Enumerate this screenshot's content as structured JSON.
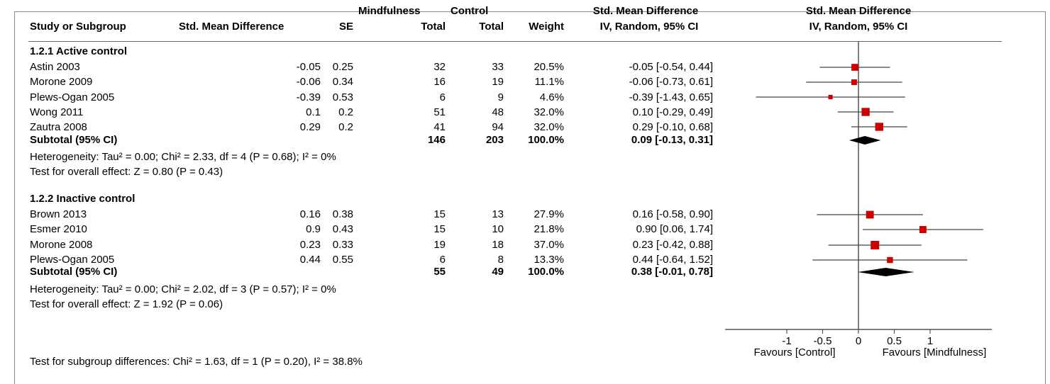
{
  "header": {
    "col_study": "Study or Subgroup",
    "col_smd": "Std. Mean Difference",
    "col_se": "SE",
    "mind_top": "Mindfulness",
    "mind_bottom": "Total",
    "ctrl_top": "Control",
    "ctrl_bottom": "Total",
    "col_weight": "Weight",
    "ci_top": "Std. Mean Difference",
    "ci_bottom": "IV, Random, 95% CI",
    "plot_top": "Std. Mean Difference",
    "plot_bottom": "IV, Random, 95% CI"
  },
  "groups": [
    {
      "title": "1.2.1 Active control",
      "subtotal_label": "Subtotal (95% CI)",
      "subtotal_mind": "146",
      "subtotal_ctrl": "203",
      "subtotal_weight": "100.0%",
      "subtotal_ci": "0.09 [-0.13, 0.31]",
      "heterogeneity": "Heterogeneity: Tau² = 0.00; Chi² = 2.33, df = 4 (P = 0.68); I² = 0%",
      "overall": "Test for overall effect: Z = 0.80 (P = 0.43)"
    },
    {
      "title": "1.2.2 Inactive control",
      "subtotal_label": "Subtotal (95% CI)",
      "subtotal_mind": "55",
      "subtotal_ctrl": "49",
      "subtotal_weight": "100.0%",
      "subtotal_ci": "0.38 [-0.01, 0.78]",
      "heterogeneity": "Heterogeneity: Tau² = 0.00; Chi² = 2.02, df = 3 (P = 0.57); I² = 0%",
      "overall": "Test for overall effect: Z = 1.92 (P = 0.06)"
    }
  ],
  "rows": [
    {
      "study": "Astin 2003",
      "smd": "-0.05",
      "se": "0.25",
      "mind": "32",
      "ctrl": "33",
      "weight": "20.5%",
      "ci": "-0.05 [-0.54, 0.44]"
    },
    {
      "study": "Morone 2009",
      "smd": "-0.06",
      "se": "0.34",
      "mind": "16",
      "ctrl": "19",
      "weight": "11.1%",
      "ci": "-0.06 [-0.73, 0.61]"
    },
    {
      "study": "Plews-Ogan 2005",
      "smd": "-0.39",
      "se": "0.53",
      "mind": "6",
      "ctrl": "9",
      "weight": "4.6%",
      "ci": "-0.39 [-1.43, 0.65]"
    },
    {
      "study": "Wong 2011",
      "smd": "0.1",
      "se": "0.2",
      "mind": "51",
      "ctrl": "48",
      "weight": "32.0%",
      "ci": "0.10 [-0.29, 0.49]"
    },
    {
      "study": "Zautra 2008",
      "smd": "0.29",
      "se": "0.2",
      "mind": "41",
      "ctrl": "94",
      "weight": "32.0%",
      "ci": "0.29 [-0.10, 0.68]"
    },
    {
      "study": "Brown 2013",
      "smd": "0.16",
      "se": "0.38",
      "mind": "15",
      "ctrl": "13",
      "weight": "27.9%",
      "ci": "0.16 [-0.58, 0.90]"
    },
    {
      "study": "Esmer 2010",
      "smd": "0.9",
      "se": "0.43",
      "mind": "15",
      "ctrl": "10",
      "weight": "21.8%",
      "ci": "0.90 [0.06, 1.74]"
    },
    {
      "study": "Morone 2008",
      "smd": "0.23",
      "se": "0.33",
      "mind": "19",
      "ctrl": "18",
      "weight": "37.0%",
      "ci": "0.23 [-0.42, 0.88]"
    },
    {
      "study": "Plews-Ogan 2005",
      "smd": "0.44",
      "se": "0.55",
      "mind": "6",
      "ctrl": "8",
      "weight": "13.3%",
      "ci": "0.44 [-0.64, 1.52]"
    }
  ],
  "footer": {
    "subgroup_test": "Test for subgroup differences: Chi² = 1.63, df = 1 (P = 0.20), I² = 38.8%"
  },
  "chart_data": {
    "type": "forest",
    "xlim": [
      -2,
      2
    ],
    "ticks": [
      -1,
      -0.5,
      0,
      0.5,
      1
    ],
    "tick_labels": [
      "-1",
      "-0.5",
      "0",
      "0.5",
      "1"
    ],
    "favours_left": "Favours [Control]",
    "favours_right": "Favours [Mindfulness]",
    "studies": [
      {
        "study": "Astin 2003",
        "est": -0.05,
        "lo": -0.54,
        "hi": 0.44,
        "weight": 20.5
      },
      {
        "study": "Morone 2009",
        "est": -0.06,
        "lo": -0.73,
        "hi": 0.61,
        "weight": 11.1
      },
      {
        "study": "Plews-Ogan 2005",
        "est": -0.39,
        "lo": -1.43,
        "hi": 0.65,
        "weight": 4.6
      },
      {
        "study": "Wong 2011",
        "est": 0.1,
        "lo": -0.29,
        "hi": 0.49,
        "weight": 32.0
      },
      {
        "study": "Zautra 2008",
        "est": 0.29,
        "lo": -0.1,
        "hi": 0.68,
        "weight": 32.0
      },
      {
        "study": "Brown 2013",
        "est": 0.16,
        "lo": -0.58,
        "hi": 0.9,
        "weight": 27.9
      },
      {
        "study": "Esmer 2010",
        "est": 0.9,
        "lo": 0.06,
        "hi": 1.74,
        "weight": 21.8
      },
      {
        "study": "Morone 2008",
        "est": 0.23,
        "lo": -0.42,
        "hi": 0.88,
        "weight": 37.0
      },
      {
        "study": "Plews-Ogan 2005",
        "est": 0.44,
        "lo": -0.64,
        "hi": 1.52,
        "weight": 13.3
      }
    ],
    "subtotals": [
      {
        "group": "1.2.1 Active control",
        "est": 0.09,
        "lo": -0.13,
        "hi": 0.31
      },
      {
        "group": "1.2.2 Inactive control",
        "est": 0.38,
        "lo": -0.01,
        "hi": 0.78
      }
    ],
    "marker_color": "#cc0000",
    "diamond_color": "#000000"
  }
}
